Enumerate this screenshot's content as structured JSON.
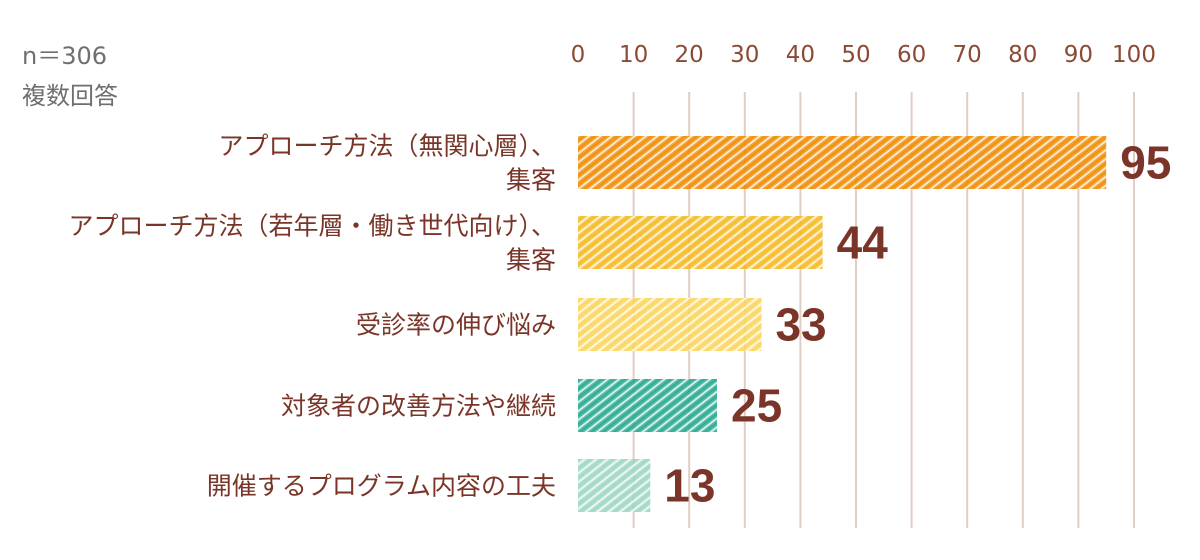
{
  "sample_note": "n＝306",
  "multiple_answer_note": "複数回答",
  "colors": {
    "grid": "#e2cdc3",
    "tick_text": "#8b4a33",
    "category_text": "#7a3528",
    "value_text": "#7a3528"
  },
  "chart_data": {
    "type": "bar",
    "orientation": "horizontal",
    "categories": [
      [
        "アプローチ方法（無関心層）、",
        "集客"
      ],
      [
        "アプローチ方法（若年層・働き世代向け）、",
        "集客"
      ],
      [
        "受診率の伸び悩み"
      ],
      [
        "対象者の改善方法や継続"
      ],
      [
        "開催するプログラム内容の工夫"
      ]
    ],
    "values": [
      95,
      44,
      33,
      25,
      13
    ],
    "value_labels": [
      "95",
      "44",
      "33",
      "25",
      "13"
    ],
    "bar_colors": [
      "#f08a00",
      "#f5b820",
      "#fbd45a",
      "#25a88e",
      "#9cd6c3"
    ],
    "xlim": [
      0,
      100
    ],
    "ticks": [
      0,
      10,
      20,
      30,
      40,
      50,
      60,
      70,
      80,
      90,
      100
    ],
    "tick_labels": [
      "0",
      "10",
      "20",
      "30",
      "40",
      "50",
      "60",
      "70",
      "80",
      "90",
      "100"
    ],
    "grid": true,
    "axis_position": "top"
  }
}
